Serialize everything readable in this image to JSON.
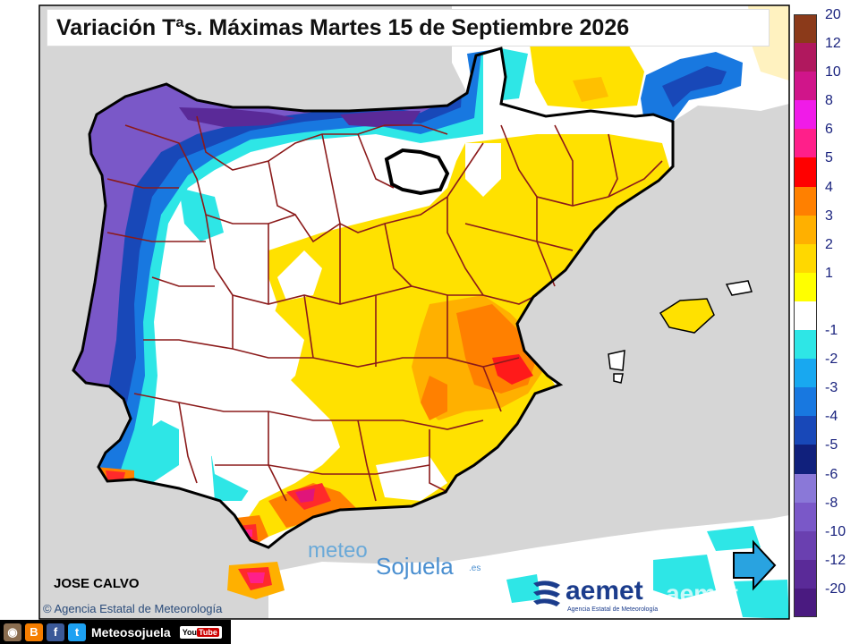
{
  "title": "Variación Tªs. Máximas Martes 15 de Septiembre 2026",
  "legend": {
    "items": [
      {
        "label": "20",
        "color": "#8b3a1a"
      },
      {
        "label": "12",
        "color": "#b0185e"
      },
      {
        "label": "10",
        "color": "#d0158a"
      },
      {
        "label": "8",
        "color": "#f01be8"
      },
      {
        "label": "6",
        "color": "#ff1f8a"
      },
      {
        "label": "5",
        "color": "#ff0000"
      },
      {
        "label": "4",
        "color": "#ff8000"
      },
      {
        "label": "3",
        "color": "#ffb000"
      },
      {
        "label": "2",
        "color": "#ffd800"
      },
      {
        "label": "1",
        "color": "#ffff00"
      },
      {
        "label": "",
        "color": "#ffffff"
      },
      {
        "label": "-1",
        "color": "#2ee6e6"
      },
      {
        "label": "-2",
        "color": "#18a8f0"
      },
      {
        "label": "-3",
        "color": "#1878e0"
      },
      {
        "label": "-4",
        "color": "#1848b8"
      },
      {
        "label": "-5",
        "color": "#10207c"
      },
      {
        "label": "-6",
        "color": "#8a78d8"
      },
      {
        "label": "-8",
        "color": "#7a58c8"
      },
      {
        "label": "-10",
        "color": "#6a40b0"
      },
      {
        "label": "-12",
        "color": "#5a2a98"
      },
      {
        "label": "-20",
        "color": "#4a1a80"
      }
    ]
  },
  "author": "JOSE CALVO",
  "copyright": "© Agencia Estatal de Meteorología",
  "social": {
    "handle": "Meteosojuela",
    "youtube": "You",
    "youtube_tube": "Tube"
  },
  "watermark": {
    "part1": "meteo",
    "part2": "Sojuela",
    "part3": ".es"
  },
  "aemet": {
    "name": "aemet",
    "subtitle": "Agencia Estatal de Meteorología"
  },
  "colors": {
    "sea": "#d6d6d6",
    "land_neutral": "#ffffff",
    "coast": "#000000",
    "borders": "#8b1a1a",
    "frame": "#000000"
  }
}
